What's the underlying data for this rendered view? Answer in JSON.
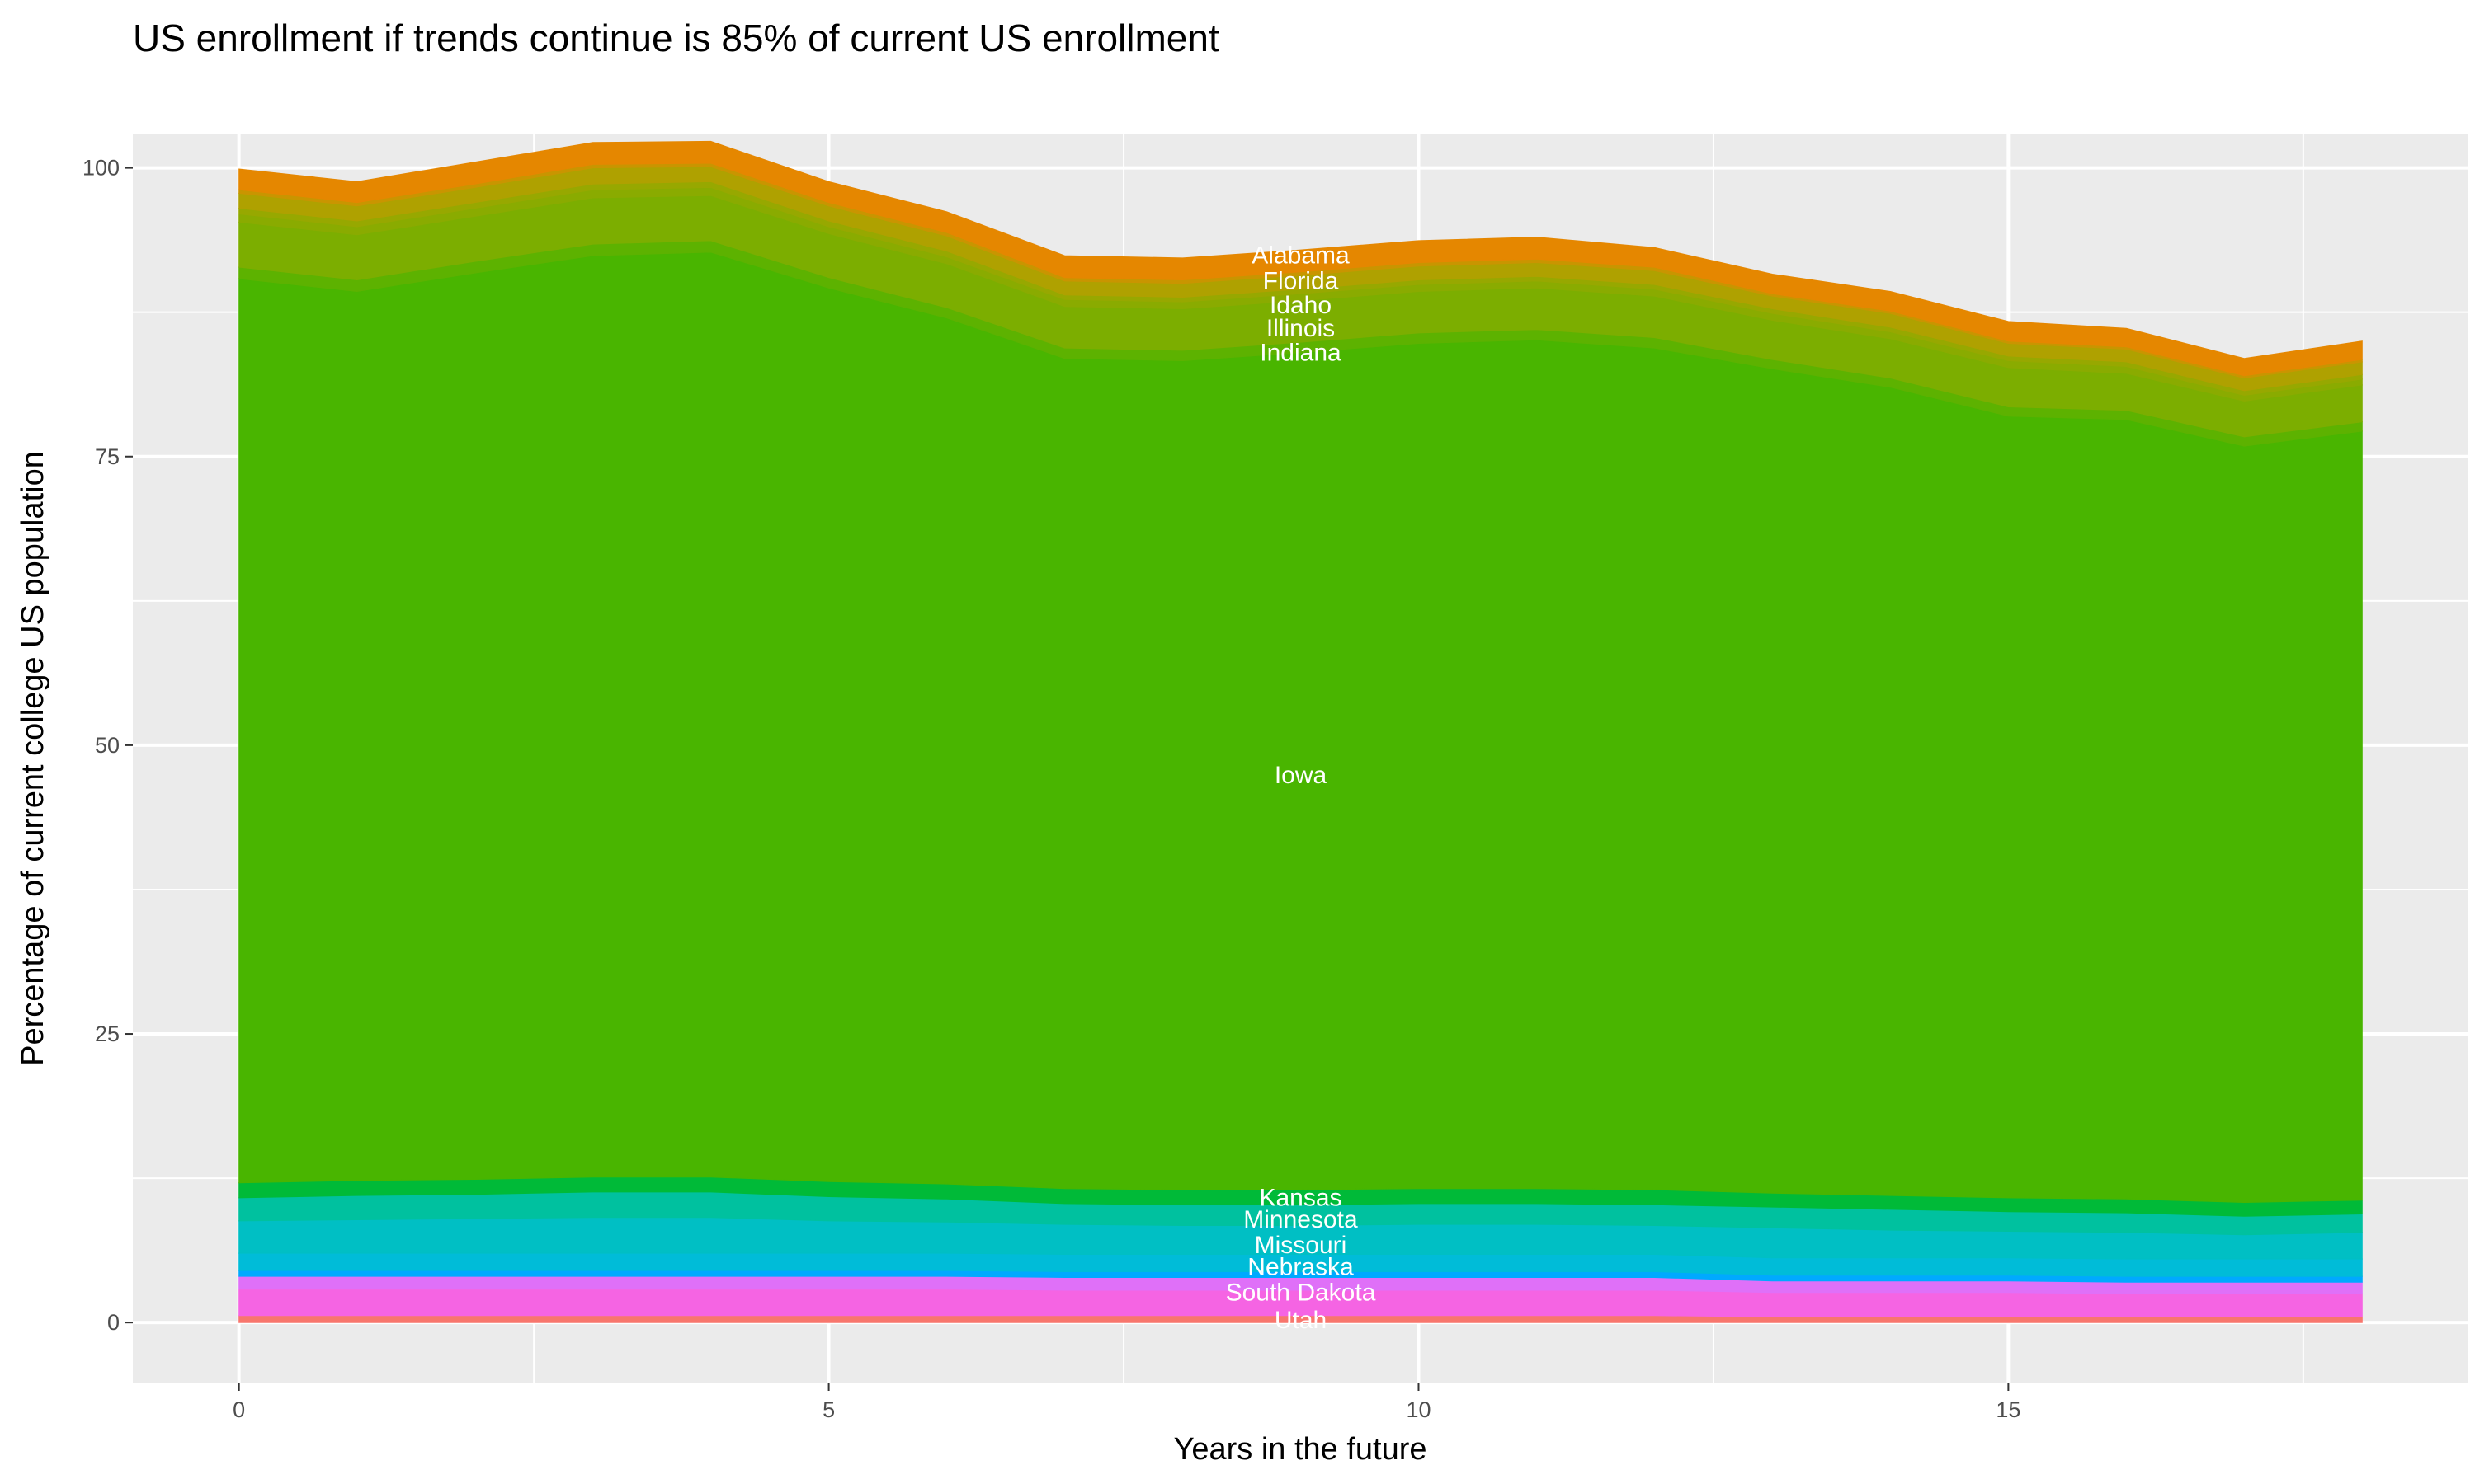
{
  "chart_data": {
    "type": "area",
    "stacked": true,
    "title": "US enrollment if trends continue is 85% of current US enrollment",
    "xlabel": "Years in the future",
    "ylabel": "Percentage of current college US population",
    "xlim": [
      -0.9,
      18.9
    ],
    "ylim": [
      -5.2,
      102.9
    ],
    "x_ticks": [
      0,
      5,
      10,
      15
    ],
    "y_ticks": [
      0,
      25,
      50,
      75,
      100
    ],
    "grid": true,
    "legend": "none",
    "background": "#EBEBEB",
    "x": [
      0,
      1,
      2,
      3,
      4,
      5,
      6,
      7,
      8,
      9,
      10,
      11,
      12,
      13,
      14,
      15,
      16,
      17,
      18
    ],
    "series": [
      {
        "name": "Utah",
        "color": "#F8766D",
        "values": [
          0.6,
          0.6,
          0.6,
          0.6,
          0.6,
          0.6,
          0.6,
          0.6,
          0.6,
          0.6,
          0.6,
          0.6,
          0.6,
          0.5,
          0.5,
          0.5,
          0.5,
          0.5,
          0.5
        ]
      },
      {
        "name": "South Dakota",
        "color": "#F564E3",
        "values": [
          2.3,
          2.3,
          2.3,
          2.3,
          2.3,
          2.3,
          2.3,
          2.2,
          2.2,
          2.2,
          2.2,
          2.2,
          2.2,
          2.1,
          2.1,
          2.1,
          2.0,
          2.0,
          2.0
        ]
      },
      {
        "color": "#DF70F8",
        "values": [
          1.1,
          1.1,
          1.1,
          1.1,
          1.1,
          1.1,
          1.1,
          1.1,
          1.1,
          1.1,
          1.1,
          1.1,
          1.1,
          1.0,
          1.0,
          1.0,
          1.0,
          1.0,
          1.0
        ]
      },
      {
        "color": "#00A9FF",
        "values": [
          0.5,
          0.5,
          0.5,
          0.5,
          0.5,
          0.5,
          0.5,
          0.5,
          0.5,
          0.5,
          0.5,
          0.5,
          0.5,
          0.5,
          0.5,
          0.5,
          0.5,
          0.5,
          0.5
        ]
      },
      {
        "name": "Nebraska",
        "color": "#00BCD8",
        "values": [
          1.5,
          1.5,
          1.5,
          1.5,
          1.5,
          1.5,
          1.5,
          1.5,
          1.5,
          1.5,
          1.5,
          1.5,
          1.5,
          1.5,
          1.5,
          1.5,
          1.5,
          1.5,
          1.5
        ]
      },
      {
        "name": "Missouri",
        "color": "#00BFC4",
        "values": [
          2.8,
          2.9,
          3.0,
          3.1,
          3.1,
          2.8,
          2.7,
          2.6,
          2.5,
          2.5,
          2.6,
          2.6,
          2.5,
          2.6,
          2.4,
          2.3,
          2.3,
          2.1,
          2.3
        ]
      },
      {
        "name": "Minnesota",
        "color": "#00C19F",
        "values": [
          2.0,
          2.1,
          2.1,
          2.2,
          2.2,
          2.1,
          2.0,
          1.8,
          1.8,
          1.8,
          1.8,
          1.8,
          1.8,
          1.8,
          1.8,
          1.7,
          1.7,
          1.6,
          1.6
        ]
      },
      {
        "name": "Kansas",
        "color": "#00BA38",
        "values": [
          1.3,
          1.3,
          1.3,
          1.3,
          1.3,
          1.3,
          1.3,
          1.3,
          1.3,
          1.3,
          1.3,
          1.3,
          1.3,
          1.2,
          1.2,
          1.2,
          1.2,
          1.2,
          1.2
        ]
      },
      {
        "name": "Iowa",
        "color": "#49B500",
        "values": [
          78.3,
          77.0,
          78.5,
          79.8,
          80.1,
          77.4,
          75.0,
          71.9,
          71.8,
          72.5,
          73.2,
          73.5,
          72.9,
          71.4,
          70.0,
          67.7,
          67.5,
          65.5,
          66.6
        ]
      },
      {
        "name": "Indiana",
        "color": "#5DB200",
        "values": [
          1.0,
          1.0,
          1.0,
          1.0,
          1.0,
          0.9,
          0.9,
          0.9,
          0.9,
          0.9,
          0.9,
          0.9,
          0.9,
          0.8,
          0.8,
          0.8,
          0.8,
          0.8,
          0.8
        ]
      },
      {
        "name": "Illinois",
        "color": "#7CAE00",
        "values": [
          3.9,
          3.9,
          3.9,
          4.0,
          3.9,
          3.8,
          3.8,
          3.6,
          3.6,
          3.6,
          3.6,
          3.6,
          3.6,
          3.4,
          3.4,
          3.4,
          3.2,
          3.1,
          3.2
        ]
      },
      {
        "name": "Idaho",
        "color": "#8AAB00",
        "values": [
          0.7,
          0.7,
          0.7,
          0.7,
          0.7,
          0.6,
          0.6,
          0.6,
          0.6,
          0.6,
          0.6,
          0.6,
          0.6,
          0.6,
          0.6,
          0.6,
          0.6,
          0.5,
          0.5
        ]
      },
      {
        "color": "#97A800",
        "values": [
          0.5,
          0.5,
          0.5,
          0.5,
          0.5,
          0.5,
          0.5,
          0.4,
          0.4,
          0.4,
          0.4,
          0.4,
          0.4,
          0.4,
          0.4,
          0.4,
          0.4,
          0.4,
          0.4
        ]
      },
      {
        "name": "Florida",
        "color": "#AFA100",
        "values": [
          1.3,
          1.3,
          1.3,
          1.4,
          1.3,
          1.3,
          1.3,
          1.2,
          1.2,
          1.2,
          1.2,
          1.2,
          1.2,
          1.1,
          1.2,
          1.1,
          1.1,
          1.1,
          1.1
        ]
      },
      {
        "color": "#C99500",
        "values": [
          0.3,
          0.3,
          0.3,
          0.3,
          0.3,
          0.3,
          0.3,
          0.3,
          0.3,
          0.3,
          0.3,
          0.3,
          0.3,
          0.2,
          0.2,
          0.2,
          0.2,
          0.2,
          0.2
        ]
      },
      {
        "name": "Alabama",
        "color": "#E58700",
        "values": [
          1.8,
          1.8,
          1.9,
          1.9,
          1.9,
          1.8,
          1.8,
          1.9,
          1.9,
          1.9,
          1.9,
          1.9,
          1.7,
          1.7,
          1.7,
          1.7,
          1.6,
          1.5,
          1.6
        ]
      }
    ],
    "annotations": [
      {
        "text": "Alabama",
        "x": 9,
        "y": 92.5
      },
      {
        "text": "Florida",
        "x": 9,
        "y": 90.3
      },
      {
        "text": "Idaho",
        "x": 9,
        "y": 88.2
      },
      {
        "text": "Illinois",
        "x": 9,
        "y": 86.2
      },
      {
        "text": "Indiana",
        "x": 9,
        "y": 84.1
      },
      {
        "text": "Iowa",
        "x": 9,
        "y": 47.5
      },
      {
        "text": "Kansas",
        "x": 9,
        "y": 10.9
      },
      {
        "text": "Minnesota",
        "x": 9,
        "y": 9.0
      },
      {
        "text": "Missouri",
        "x": 9,
        "y": 6.8
      },
      {
        "text": "Nebraska",
        "x": 9,
        "y": 4.9
      },
      {
        "text": "South Dakota",
        "x": 9,
        "y": 2.7
      },
      {
        "text": "Utah",
        "x": 9,
        "y": 0.3
      }
    ]
  }
}
